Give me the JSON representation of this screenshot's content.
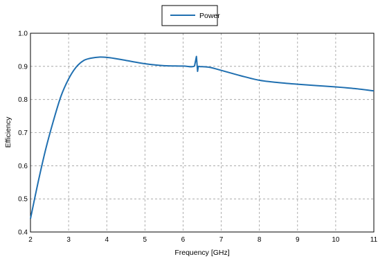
{
  "chart_data": {
    "type": "line",
    "xlabel": "Frequency [GHz]",
    "ylabel": "Efficiency",
    "xlim": [
      2,
      11
    ],
    "ylim": [
      0.4,
      1.0
    ],
    "xticks": [
      2,
      3,
      4,
      5,
      6,
      7,
      8,
      9,
      10,
      11
    ],
    "xtick_labels": [
      "2",
      "3",
      "4",
      "5",
      "6",
      "7",
      "8",
      "9",
      "10",
      "11"
    ],
    "yticks": [
      0.4,
      0.5,
      0.6,
      0.7,
      0.8,
      0.9,
      1.0
    ],
    "ytick_labels": [
      "0.4",
      "0.5",
      "0.6",
      "0.7",
      "0.8",
      "0.9",
      "1.0"
    ],
    "grid": true,
    "legend_position": "top-center",
    "series": [
      {
        "name": "Power",
        "color": "#1f6fb0",
        "x": [
          2.0,
          2.2,
          2.4,
          2.6,
          2.8,
          3.0,
          3.2,
          3.4,
          3.6,
          3.8,
          4.0,
          4.2,
          4.5,
          5.0,
          5.5,
          6.0,
          6.3,
          6.35,
          6.38,
          6.4,
          6.42,
          6.45,
          6.5,
          6.7,
          7.0,
          7.5,
          8.0,
          8.5,
          9.0,
          9.5,
          10.0,
          10.5,
          11.0
        ],
        "y": [
          0.44,
          0.55,
          0.65,
          0.735,
          0.81,
          0.862,
          0.898,
          0.918,
          0.925,
          0.928,
          0.927,
          0.924,
          0.918,
          0.908,
          0.902,
          0.901,
          0.901,
          0.93,
          0.885,
          0.9,
          0.9,
          0.899,
          0.899,
          0.897,
          0.888,
          0.872,
          0.858,
          0.851,
          0.846,
          0.842,
          0.838,
          0.833,
          0.826
        ]
      }
    ]
  }
}
